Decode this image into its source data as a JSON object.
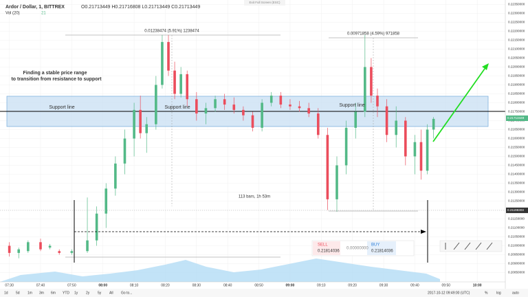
{
  "chart_data": {
    "type": "candlestick",
    "title": "Ardor / Dollar, 1, BITTREX",
    "ohlc_header": "O0.21713449 H0.21716808 L0.21713449 C0.21713449",
    "indicator": "Vol (20)",
    "indicator_value": "21",
    "up_color": "#53b987",
    "down_color": "#eb4d5c",
    "x": [
      "07:30",
      "07:33",
      "07:36",
      "07:40",
      "07:43",
      "07:46",
      "07:50",
      "07:55",
      "07:58",
      "08:01",
      "08:04",
      "08:07",
      "08:10",
      "08:12",
      "08:14",
      "08:17",
      "08:19",
      "08:21",
      "08:23",
      "08:25",
      "08:27",
      "08:30",
      "08:33",
      "08:36",
      "08:39",
      "08:42",
      "08:45",
      "08:48",
      "08:51",
      "08:54",
      "08:57",
      "09:00",
      "09:03",
      "09:06",
      "09:09",
      "09:12",
      "09:15",
      "09:18",
      "09:21",
      "09:24",
      "09:26",
      "09:28",
      "09:31",
      "09:34",
      "09:37",
      "09:40",
      "09:42",
      "09:44",
      "09:46"
    ],
    "open": [
      0.21,
      0.2096,
      0.2097,
      0.2102,
      0.2099,
      0.2097,
      0.2096,
      0.2097,
      0.2103,
      0.2118,
      0.2132,
      0.2146,
      0.216,
      0.2176,
      0.2163,
      0.2168,
      0.219,
      0.2214,
      0.2198,
      0.2185,
      0.2196,
      0.2182,
      0.2174,
      0.2177,
      0.2182,
      0.2179,
      0.2176,
      0.2173,
      0.2166,
      0.218,
      0.2184,
      0.2179,
      0.2178,
      0.2177,
      0.2174,
      0.2162,
      0.2126,
      0.2145,
      0.2166,
      0.2175,
      0.22,
      0.2184,
      0.2178,
      0.2162,
      0.217,
      0.215,
      0.2158,
      0.2142,
      0.2165
    ],
    "high": [
      0.2102,
      0.2099,
      0.2103,
      0.2104,
      0.2101,
      0.2098,
      0.2098,
      0.2127,
      0.2122,
      0.2135,
      0.215,
      0.2165,
      0.218,
      0.2184,
      0.2172,
      0.2195,
      0.2218,
      0.2218,
      0.2203,
      0.22,
      0.2198,
      0.2186,
      0.218,
      0.2184,
      0.2185,
      0.2183,
      0.2178,
      0.2175,
      0.2182,
      0.2186,
      0.2186,
      0.2182,
      0.2181,
      0.218,
      0.2177,
      0.2166,
      0.215,
      0.217,
      0.218,
      0.2218,
      0.2205,
      0.2188,
      0.2182,
      0.2178,
      0.2172,
      0.2162,
      0.2165,
      0.2168,
      0.2172
    ],
    "low": [
      0.2094,
      0.2093,
      0.2096,
      0.2097,
      0.2098,
      0.2095,
      0.2095,
      0.2096,
      0.21,
      0.211,
      0.2128,
      0.214,
      0.215,
      0.216,
      0.2152,
      0.2165,
      0.2188,
      0.2195,
      0.2182,
      0.2183,
      0.2178,
      0.217,
      0.2168,
      0.2175,
      0.2176,
      0.2174,
      0.217,
      0.2164,
      0.2164,
      0.2178,
      0.2177,
      0.2176,
      0.2175,
      0.2172,
      0.216,
      0.212,
      0.2119,
      0.214,
      0.216,
      0.2172,
      0.218,
      0.2172,
      0.2158,
      0.2155,
      0.2145,
      0.214,
      0.2137,
      0.214,
      0.216
    ],
    "close": [
      0.2096,
      0.2098,
      0.2102,
      0.2098,
      0.21,
      0.2096,
      0.2097,
      0.2103,
      0.2118,
      0.2132,
      0.2146,
      0.216,
      0.2176,
      0.2163,
      0.2168,
      0.219,
      0.2214,
      0.2198,
      0.2185,
      0.2196,
      0.2182,
      0.2174,
      0.2177,
      0.2182,
      0.2179,
      0.2176,
      0.2173,
      0.2166,
      0.218,
      0.2184,
      0.2179,
      0.2178,
      0.2177,
      0.2174,
      0.2162,
      0.2126,
      0.2145,
      0.2166,
      0.2175,
      0.22,
      0.2184,
      0.2178,
      0.2162,
      0.217,
      0.215,
      0.2158,
      0.2142,
      0.2165,
      0.2171
    ],
    "xlim": [
      "07:27",
      "10:09"
    ],
    "xticks": [
      "07:30",
      "07:40",
      "07:50",
      "08:00",
      "08:10",
      "08:20",
      "08:30",
      "08:40",
      "08:50",
      "09:00",
      "09:10",
      "09:20",
      "09:30",
      "09:40",
      "09:50",
      "10:00"
    ],
    "ylim": [
      0.20798,
      0.22375
    ],
    "yticks": [
      {
        "value": 0.2085,
        "label": "0.20850000"
      },
      {
        "value": 0.209,
        "label": "0.20900000"
      },
      {
        "value": 0.2095,
        "label": "0.20950000"
      },
      {
        "value": 0.21,
        "label": "0.21000000"
      },
      {
        "value": 0.2105,
        "label": "0.21050000"
      },
      {
        "value": 0.211,
        "label": "0.21100000"
      },
      {
        "value": 0.2115,
        "label": "0.21150000"
      },
      {
        "value": 0.212,
        "label": "0.21200000"
      },
      {
        "value": 0.2125,
        "label": "0.21250000"
      },
      {
        "value": 0.213,
        "label": "0.21300000"
      },
      {
        "value": 0.2135,
        "label": "0.21350000"
      },
      {
        "value": 0.214,
        "label": "0.21400000"
      },
      {
        "value": 0.2145,
        "label": "0.21450000"
      },
      {
        "value": 0.215,
        "label": "0.21500000"
      },
      {
        "value": 0.2155,
        "label": "0.21550000"
      },
      {
        "value": 0.216,
        "label": "0.21600000"
      },
      {
        "value": 0.2165,
        "label": "0.21650000"
      },
      {
        "value": 0.217,
        "label": "0.21700000"
      },
      {
        "value": 0.2175,
        "label": "0.21750000"
      },
      {
        "value": 0.218,
        "label": "0.21800000"
      },
      {
        "value": 0.2185,
        "label": "0.21850000"
      },
      {
        "value": 0.219,
        "label": "0.21900000"
      },
      {
        "value": 0.2195,
        "label": "0.21950000"
      },
      {
        "value": 0.22,
        "label": "0.22000000"
      },
      {
        "value": 0.2205,
        "label": "0.22050000"
      },
      {
        "value": 0.221,
        "label": "0.22100000"
      },
      {
        "value": 0.2215,
        "label": "0.22150000"
      },
      {
        "value": 0.222,
        "label": "0.22200000"
      },
      {
        "value": 0.2225,
        "label": "0.22250000"
      },
      {
        "value": 0.223,
        "label": "0.22300000"
      },
      {
        "value": 0.2235,
        "label": "0.22350000"
      }
    ],
    "price_markers": [
      0.21713449,
      0.21198303
    ],
    "annotations": {
      "measure_left": "0.01238474 (5.91%) 1238474",
      "measure_right": "0.00971858 (4.59%) 971858",
      "note_line1": "Finding a stable price range",
      "note_line2": "to transition from resistance to support",
      "support_labels": [
        "Support line",
        "Support line",
        "Support line"
      ],
      "bars_range": "113 bars, 1h 53m"
    }
  },
  "ui": {
    "exit_fullscreen": "Exit Full Screen (ESC)",
    "range_buttons": [
      "1d",
      "5d",
      "1m",
      "3m",
      "6m",
      "YTD",
      "1y",
      "2y",
      "5y",
      "All",
      "Go to..."
    ],
    "timestamp": "2017-10-12 09:49:00 (UTC)",
    "scale_buttons": [
      "%",
      "log",
      "auto"
    ],
    "order": {
      "sell_label": "SELL",
      "sell_price": "0.21814036",
      "spread": "0.00000000",
      "buy_label": "BUY",
      "buy_price": "0.21814036"
    }
  }
}
